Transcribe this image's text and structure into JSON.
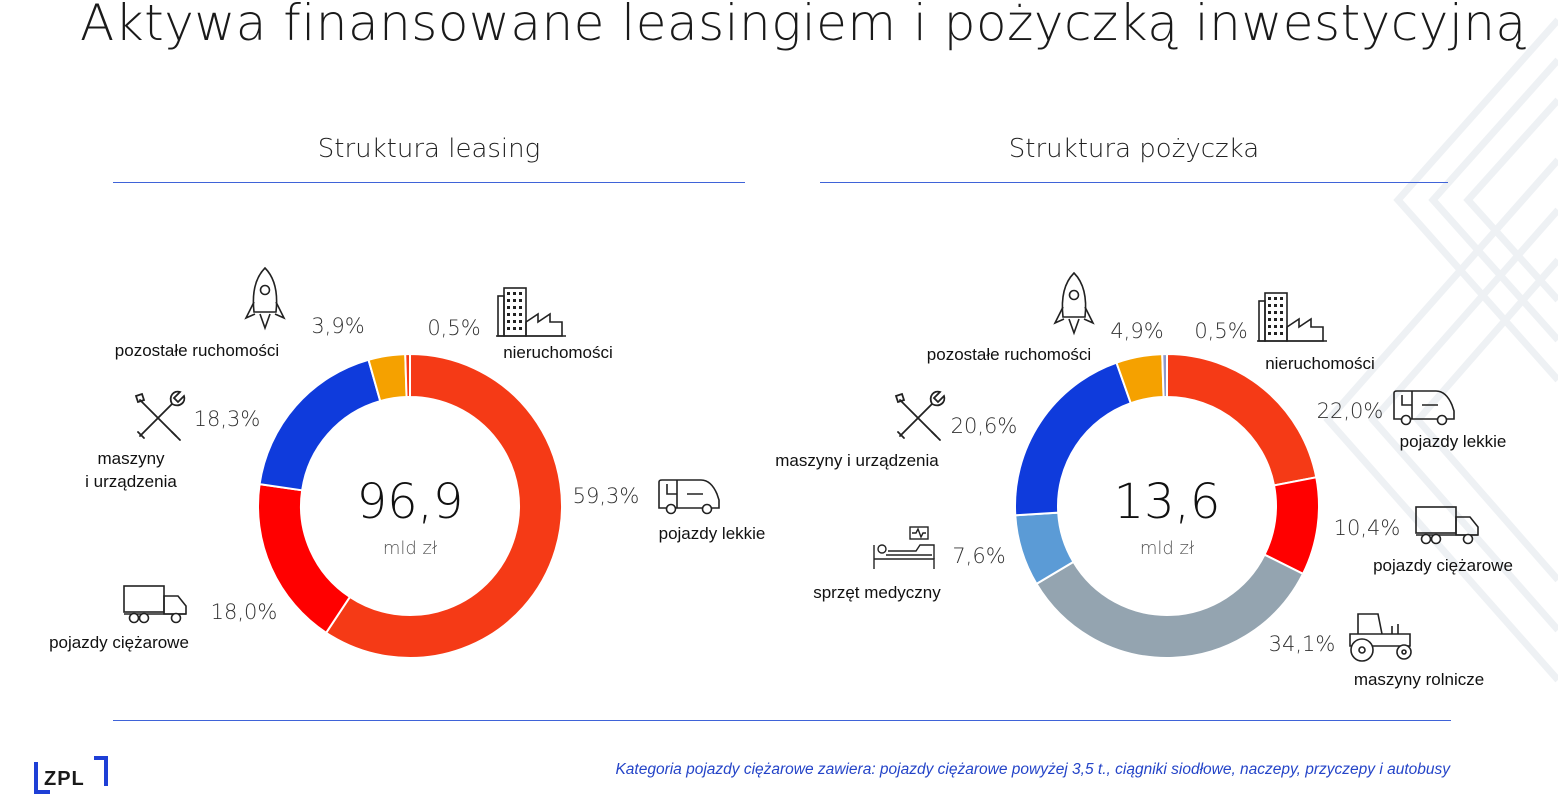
{
  "title": "Aktywa finansowane leasingiem i pożyczką inwestycyjną",
  "colors": {
    "orange_red": "#f53a16",
    "red": "#ff0000",
    "blue": "#0f3bdc",
    "amber": "#f5a100",
    "gray_blue": "#94a4b0",
    "light_blue": "#5b9bd6",
    "lavender": "#8f98c9",
    "rule": "#3f63d8",
    "footnote": "#2444c8"
  },
  "chart_data": [
    {
      "type": "pie",
      "title": "Struktura leasing",
      "center_value": "96,9",
      "center_unit": "mld zł",
      "slices": [
        {
          "name": "pojazdy lekkie",
          "value": 59.3,
          "label": "59,3%",
          "color": "#f53a16",
          "icon": "van-icon"
        },
        {
          "name": "pojazdy ciężarowe",
          "value": 18.0,
          "label": "18,0%",
          "color": "#ff0000",
          "icon": "truck-icon"
        },
        {
          "name": "maszyny i urządzenia",
          "value": 18.3,
          "label": "18,3%",
          "color": "#0f3bdc",
          "icon": "tools-icon"
        },
        {
          "name": "pozostałe ruchomości",
          "value": 3.9,
          "label": "3,9%",
          "color": "#f5a100",
          "icon": "rocket-icon"
        },
        {
          "name": "nieruchomości",
          "value": 0.5,
          "label": "0,5%",
          "color": "#f53a16",
          "icon": "factory-icon"
        }
      ]
    },
    {
      "type": "pie",
      "title": "Struktura pożyczka",
      "center_value": "13,6",
      "center_unit": "mld zł",
      "slices": [
        {
          "name": "pojazdy lekkie",
          "value": 22.0,
          "label": "22,0%",
          "color": "#f53a16",
          "icon": "van-icon"
        },
        {
          "name": "pojazdy ciężarowe",
          "value": 10.4,
          "label": "10,4%",
          "color": "#ff0000",
          "icon": "truck-icon"
        },
        {
          "name": "maszyny rolnicze",
          "value": 34.1,
          "label": "34,1%",
          "color": "#94a4b0",
          "icon": "tractor-icon"
        },
        {
          "name": "sprzęt medyczny",
          "value": 7.6,
          "label": "7,6%",
          "color": "#5b9bd6",
          "icon": "medical-bed-icon"
        },
        {
          "name": "maszyny i urządzenia",
          "value": 20.6,
          "label": "20,6%",
          "color": "#0f3bdc",
          "icon": "tools-icon"
        },
        {
          "name": "pozostałe ruchomości",
          "value": 4.9,
          "label": "4,9%",
          "color": "#f5a100",
          "icon": "rocket-icon"
        },
        {
          "name": "nieruchomości",
          "value": 0.5,
          "label": "0,5%",
          "color": "#8f98c9",
          "icon": "factory-icon"
        }
      ]
    }
  ],
  "labels_leasing": {
    "pozostale": "pozostałe ruchomości",
    "nieruchomosci": "nieruchomości",
    "maszyny_line1": "maszyny",
    "maszyny_line2": "i urządzenia",
    "lekkie": "pojazdy lekkie",
    "ciezarowe": "pojazdy ciężarowe"
  },
  "labels_pozyczka": {
    "pozostale": "pozostałe ruchomości",
    "nieruchomosci": "nieruchomości",
    "maszyny": "maszyny i urządzenia",
    "lekkie": "pojazdy lekkie",
    "ciezarowe": "pojazdy ciężarowe",
    "medyczny": "sprzęt medyczny",
    "rolnicze": "maszyny rolnicze"
  },
  "footnote": "Kategoria pojazdy ciężarowe zawiera: pojazdy ciężarowe powyżej 3,5 t., ciągniki siodłowe, naczepy, przyczepy i autobusy",
  "logo": "ZPL"
}
